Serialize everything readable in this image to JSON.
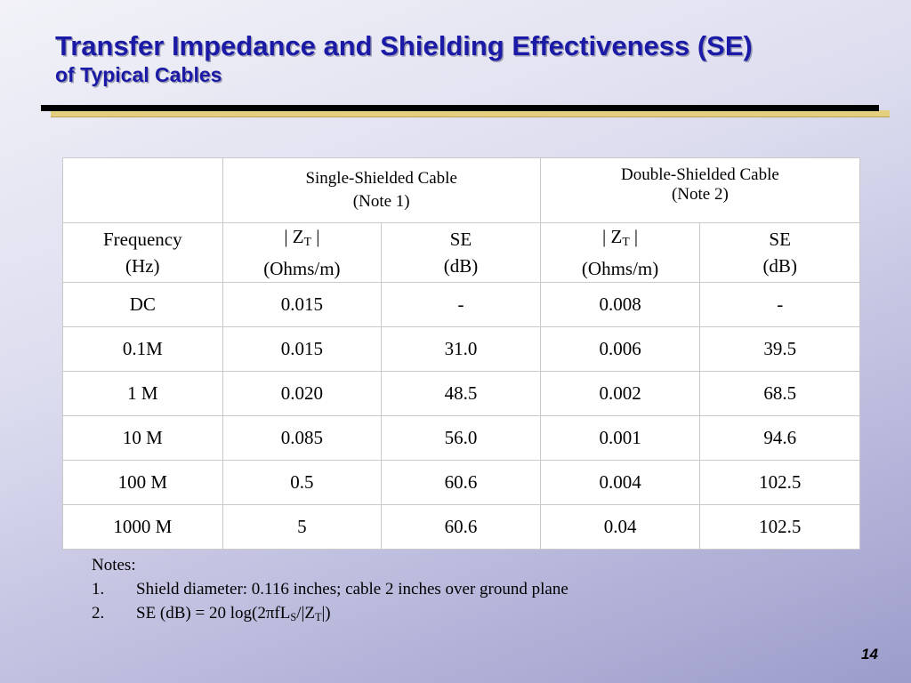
{
  "title": {
    "line1": "Transfer Impedance and Shielding Effectiveness (SE)",
    "line2": "of Typical Cables"
  },
  "table": {
    "group_headers": {
      "single_name": "Single-Shielded Cable",
      "single_note": "(Note 1)",
      "double_name": "Double-Shielded Cable",
      "double_note": "(Note 2)"
    },
    "column_headers": {
      "frequency": "Frequency",
      "frequency_unit": "(Hz)",
      "zt_prefix": "| Z",
      "zt_sub": "T",
      "zt_suffix": " |",
      "zt_unit": "(Ohms/m)",
      "se": "SE",
      "se_unit": "(dB)"
    },
    "rows": [
      {
        "frequency": "DC",
        "zt_single": "0.015",
        "se_single": "-",
        "zt_double": "0.008",
        "se_double": "-"
      },
      {
        "frequency": "0.1M",
        "zt_single": "0.015",
        "se_single": "31.0",
        "zt_double": "0.006",
        "se_double": "39.5"
      },
      {
        "frequency": "1 M",
        "zt_single": "0.020",
        "se_single": "48.5",
        "zt_double": "0.002",
        "se_double": "68.5"
      },
      {
        "frequency": "10 M",
        "zt_single": "0.085",
        "se_single": "56.0",
        "zt_double": "0.001",
        "se_double": "94.6"
      },
      {
        "frequency": "100 M",
        "zt_single": "0.5",
        "se_single": "60.6",
        "zt_double": "0.004",
        "se_double": "102.5"
      },
      {
        "frequency": "1000 M",
        "zt_single": "5",
        "se_single": "60.6",
        "zt_double": "0.04",
        "se_double": "102.5"
      }
    ]
  },
  "notes": {
    "heading": "Notes:",
    "items": [
      {
        "num": "1.",
        "text": "Shield diameter: 0.116 inches; cable 2 inches over ground plane"
      },
      {
        "num": "2.",
        "formula_a": "SE (dB) = 20 log(2πfL",
        "sub_s": "S",
        "formula_b": "/|Z",
        "sub_t": "T",
        "formula_c": "|)"
      }
    ]
  },
  "page_number": "14",
  "colors": {
    "title": "#1a1aa6",
    "rule_main": "#000000",
    "rule_accent": "#e3cf7e",
    "table_background": "#ffffff"
  }
}
